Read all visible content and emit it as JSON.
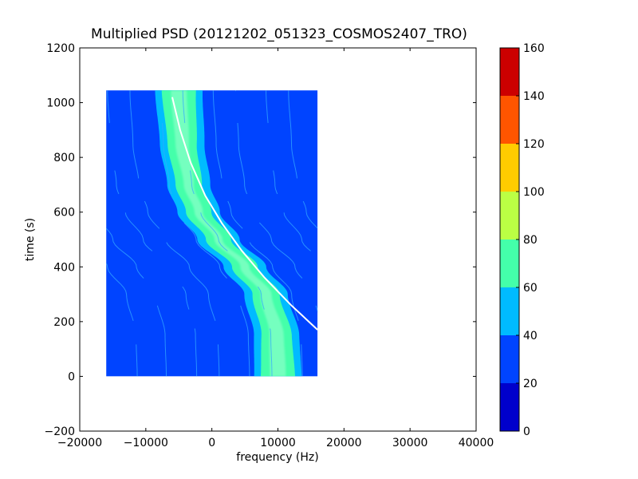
{
  "chart_data": {
    "type": "heatmap",
    "title": "Multiplied PSD (20121202_051323_COSMOS2407_TRO)",
    "xlabel": "frequency (Hz)",
    "ylabel": "time (s)",
    "xlim": [
      -20000,
      40000
    ],
    "ylim": [
      -200,
      1200
    ],
    "x_ticks": [
      "−20000",
      "−10000",
      "0",
      "10000",
      "20000",
      "30000",
      "40000"
    ],
    "y_ticks": [
      "−200",
      "0",
      "200",
      "400",
      "600",
      "800",
      "1000",
      "1200"
    ],
    "data_extent": {
      "freq_min": -16000,
      "freq_max": 16000,
      "time_min": 0,
      "time_max": 1045
    },
    "colorbar": {
      "levels": [
        0,
        20,
        40,
        60,
        80,
        100,
        120,
        140,
        160
      ],
      "tick_labels": [
        "0",
        "20",
        "40",
        "60",
        "80",
        "100",
        "120",
        "140",
        "160"
      ],
      "colors": [
        "#0000cc",
        "#0044ff",
        "#00bbff",
        "#44ffaa",
        "#bbff44",
        "#ffcc00",
        "#ff5500",
        "#cc0000"
      ]
    },
    "background_level": 30,
    "band": {
      "description_levels": "S-shaped Doppler band, high intensity center",
      "center_freq_by_time": [
        {
          "t": 0,
          "f": 10000
        },
        {
          "t": 150,
          "f": 9800
        },
        {
          "t": 300,
          "f": 8200
        },
        {
          "t": 400,
          "f": 5000
        },
        {
          "t": 500,
          "f": 1000
        },
        {
          "t": 600,
          "f": -2000
        },
        {
          "t": 700,
          "f": -3500
        },
        {
          "t": 850,
          "f": -4500
        },
        {
          "t": 1045,
          "f": -5000
        }
      ],
      "core_level": 70,
      "edge_level": 50
    },
    "white_curve": [
      {
        "t": 1020,
        "f": -6000
      },
      {
        "t": 900,
        "f": -4800
      },
      {
        "t": 780,
        "f": -3200
      },
      {
        "t": 660,
        "f": -1000
      },
      {
        "t": 560,
        "f": 1500
      },
      {
        "t": 460,
        "f": 4500
      },
      {
        "t": 360,
        "f": 8000
      },
      {
        "t": 260,
        "f": 12000
      },
      {
        "t": 170,
        "f": 16000
      }
    ]
  }
}
